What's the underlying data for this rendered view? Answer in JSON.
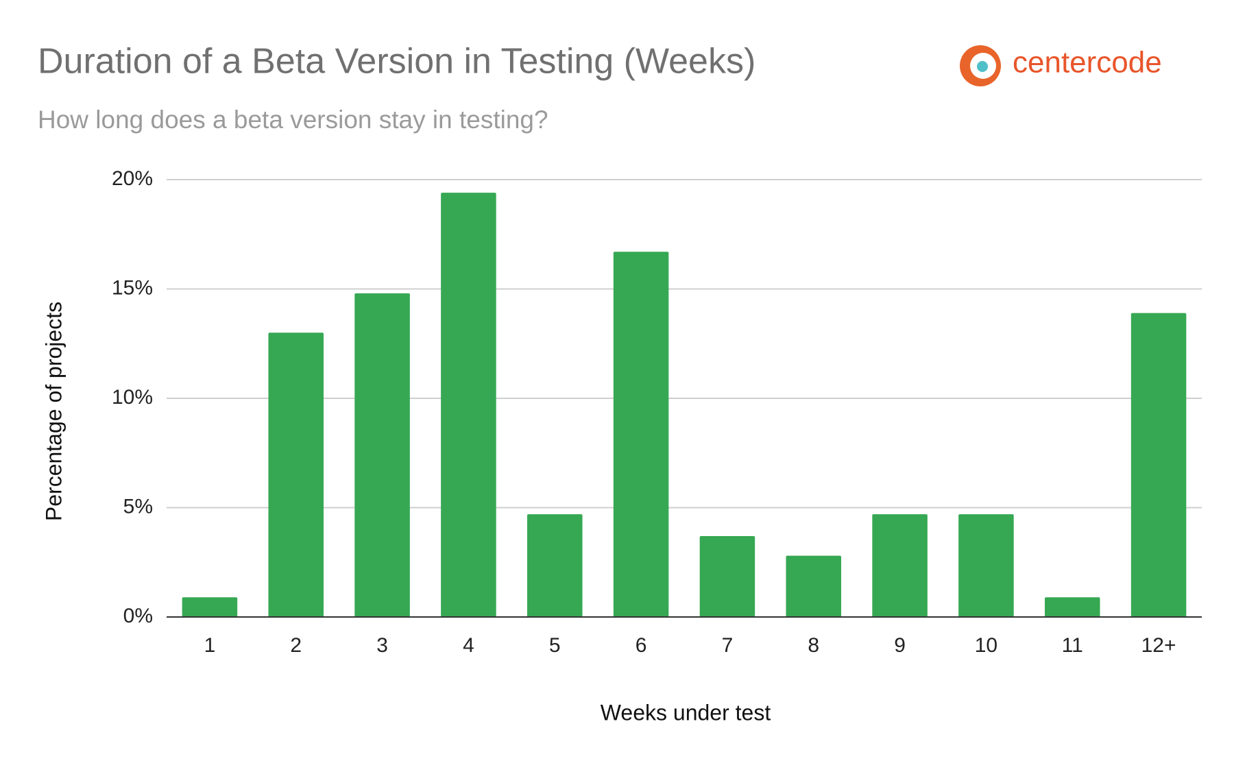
{
  "chart_data": {
    "type": "bar",
    "title": "Duration of a Beta Version in Testing (Weeks)",
    "subtitle": "How long does a beta version stay in testing?",
    "brand": "centercode",
    "x_label": "Weeks under test",
    "y_label": "Percentage of projects",
    "categories": [
      "1",
      "2",
      "3",
      "4",
      "5",
      "6",
      "7",
      "8",
      "9",
      "10",
      "11",
      "12+"
    ],
    "values": [
      0.9,
      13.0,
      14.8,
      19.4,
      4.7,
      16.7,
      3.7,
      2.8,
      4.7,
      4.7,
      0.9,
      13.9
    ],
    "color": "#36a853",
    "ylim": [
      0,
      20
    ],
    "yticks": [
      {
        "value": 0,
        "label": "0%"
      },
      {
        "value": 5,
        "label": "5%"
      },
      {
        "value": 10,
        "label": "10%"
      },
      {
        "value": 15,
        "label": "15%"
      },
      {
        "value": 20,
        "label": "20%"
      }
    ],
    "grid": true
  }
}
